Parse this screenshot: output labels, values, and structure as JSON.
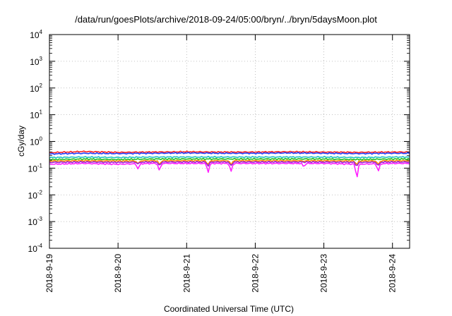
{
  "chart_data": {
    "type": "line",
    "title": "/data/run/goesPlots/archive/2018-09-24/05:00/bryn/../bryn/5daysMoon.plot",
    "xlabel": "Coordinated Universal Time (UTC)",
    "ylabel": "cGy/day",
    "yscale": "log",
    "ylim": [
      0.0001,
      10000
    ],
    "ytick_exponents": [
      "-4",
      "-3",
      "-2",
      "-1",
      "0",
      "1",
      "2",
      "3",
      "4"
    ],
    "xlim": [
      "2018-09-19",
      "2018-09-24 06:00"
    ],
    "xticks": [
      "2018-9-19",
      "2018-9-20",
      "2018-9-21",
      "2018-9-22",
      "2018-9-23",
      "2018-9-24"
    ],
    "grid": true,
    "x": [
      "2018-09-19 00:00",
      "2018-09-19 12:00",
      "2018-09-20 00:00",
      "2018-09-20 12:00",
      "2018-09-21 00:00",
      "2018-09-21 12:00",
      "2018-09-22 00:00",
      "2018-09-22 12:00",
      "2018-09-23 00:00",
      "2018-09-23 12:00",
      "2018-09-24 00:00",
      "2018-09-24 06:00"
    ],
    "series": [
      {
        "color": "#ff2020",
        "values": [
          0.38,
          0.42,
          0.39,
          0.4,
          0.41,
          0.4,
          0.4,
          0.41,
          0.4,
          0.39,
          0.4,
          0.4
        ]
      },
      {
        "color": "#1f3fff",
        "values": [
          0.34,
          0.36,
          0.35,
          0.36,
          0.37,
          0.36,
          0.36,
          0.37,
          0.36,
          0.35,
          0.36,
          0.36
        ]
      },
      {
        "color": "#20c0c0",
        "values": [
          0.25,
          0.26,
          0.25,
          0.26,
          0.26,
          0.26,
          0.26,
          0.26,
          0.26,
          0.25,
          0.26,
          0.26
        ]
      },
      {
        "color": "#20c020",
        "values": [
          0.21,
          0.22,
          0.21,
          0.22,
          0.22,
          0.22,
          0.22,
          0.22,
          0.22,
          0.21,
          0.22,
          0.22
        ]
      },
      {
        "color": "#ff8c00",
        "values": [
          0.185,
          0.19,
          0.185,
          0.19,
          0.19,
          0.19,
          0.19,
          0.19,
          0.19,
          0.185,
          0.19,
          0.19
        ]
      },
      {
        "color": "#9a20d0",
        "values": [
          0.165,
          0.17,
          0.165,
          0.17,
          0.17,
          0.17,
          0.17,
          0.17,
          0.17,
          0.165,
          0.17,
          0.17
        ]
      },
      {
        "color": "#ff20ff",
        "values": [
          0.14,
          0.15,
          0.14,
          0.15,
          0.15,
          0.15,
          0.15,
          0.15,
          0.15,
          0.14,
          0.15,
          0.15
        ]
      }
    ],
    "dips": [
      {
        "x": "2018-09-19 08:00",
        "value": 0.16
      },
      {
        "x": "2018-09-20 07:00",
        "value": 0.09
      },
      {
        "x": "2018-09-20 14:30",
        "value": 0.075
      },
      {
        "x": "2018-09-21 07:30",
        "value": 0.065
      },
      {
        "x": "2018-09-21 15:30",
        "value": 0.07
      },
      {
        "x": "2018-09-22 17:00",
        "value": 0.11
      },
      {
        "x": "2018-09-23 11:30",
        "value": 0.027
      },
      {
        "x": "2018-09-23 19:00",
        "value": 0.07
      }
    ]
  }
}
